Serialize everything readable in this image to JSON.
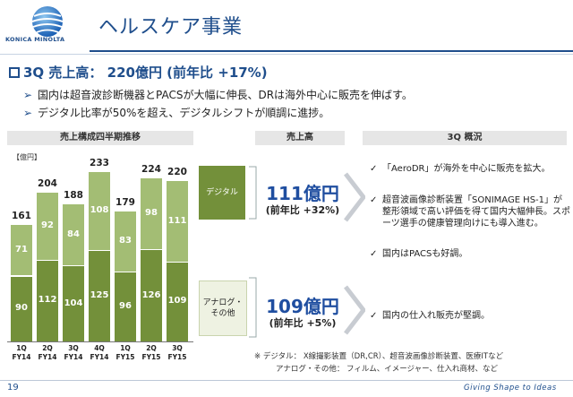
{
  "brand": {
    "name": "KONICA MINOLTA",
    "tagline": "Giving Shape to Ideas"
  },
  "title": "ヘルスケア事業",
  "headline": "3Q 売上高：  220億円 (前年比 +17%)",
  "bullets": [
    "国内は超音波診断機器とPACSが大幅に伸長、DRは海外中心に販売を伸ばす。",
    "デジタル比率が50%を超え、デジタルシフトが順調に進捗。"
  ],
  "columns": {
    "chart": "売上構成四半期推移",
    "sales": "売上高",
    "overview": "3Q 概況"
  },
  "unit": "【億円】",
  "chart_data": {
    "type": "bar",
    "stacked": true,
    "categories": [
      "1Q FY14",
      "2Q FY14",
      "3Q FY14",
      "4Q FY14",
      "1Q FY15",
      "2Q FY15",
      "3Q FY15"
    ],
    "category_lines": [
      [
        "1Q",
        "FY14"
      ],
      [
        "2Q",
        "FY14"
      ],
      [
        "3Q",
        "FY14"
      ],
      [
        "4Q",
        "FY14"
      ],
      [
        "1Q",
        "FY15"
      ],
      [
        "2Q",
        "FY15"
      ],
      [
        "3Q",
        "FY15"
      ]
    ],
    "series": [
      {
        "values": [
          90,
          112,
          104,
          125,
          96,
          126,
          109
        ],
        "color": "#73903a"
      },
      {
        "values": [
          71,
          92,
          84,
          108,
          83,
          98,
          111
        ],
        "color": "#a3bd74"
      }
    ],
    "totals": [
      161,
      204,
      188,
      233,
      179,
      224,
      220
    ],
    "ylim": [
      0,
      240
    ]
  },
  "segments": [
    {
      "label": "デジタル",
      "amount": "111億円",
      "growth": "(前年比 +32%)",
      "color": "#73903a",
      "comments": [
        "「AeroDR」が海外を中心に販売を拡大。",
        "超音波画像診断装置「SONIMAGE HS-1」が整形領域で高い評価を得て国内大幅伸長。スポーツ選手の健康管理向けにも導入進む。",
        "国内はPACSも好調。"
      ]
    },
    {
      "label": "アナログ・\nその他",
      "amount": "109億円",
      "growth": "(前年比 +5%)",
      "color": "#eef2e2",
      "comments": [
        "国内の仕入れ販売が堅調。"
      ]
    }
  ],
  "notes": [
    "※  デジタル： X線撮影装置（DR,CR）、超音波画像診断装置、医療ITなど",
    "アナログ・その他： フィルム、イメージャー、仕入れ商材、など"
  ],
  "page_number": "19"
}
